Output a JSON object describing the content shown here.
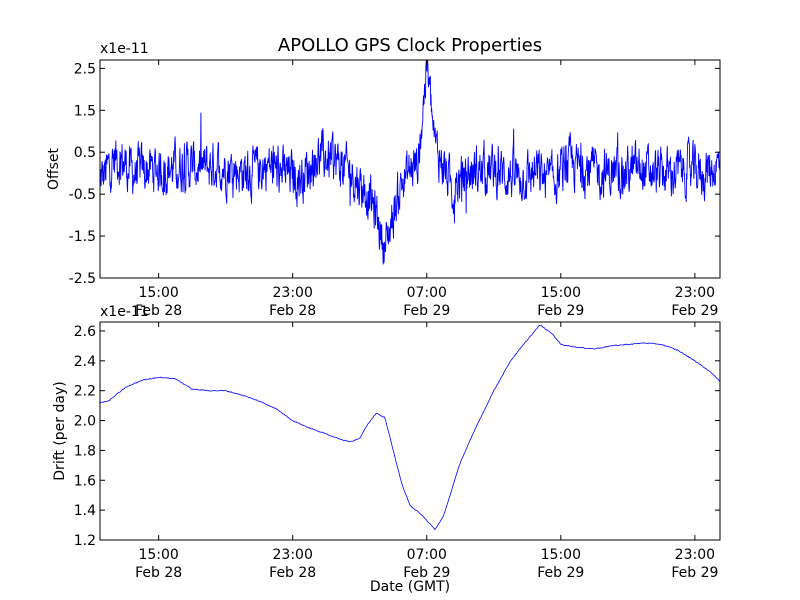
{
  "title": "APOLLO GPS Clock Properties",
  "line_color": "#0000ff",
  "chart_data": [
    {
      "type": "line",
      "ylabel": "Offset",
      "y_multiplier": "x1e-11",
      "ylim": [
        -2.5,
        2.7
      ],
      "yticks": [
        "-2.5",
        "-1.5",
        "-0.5",
        "0.5",
        "1.5",
        "2.5"
      ],
      "xlim": [
        "2012-02-28 11:30",
        "2012-03-01 00:30"
      ],
      "xticks": [
        {
          "time": "2012-02-28 15:00",
          "label1": "15:00",
          "label2": "Feb 28"
        },
        {
          "time": "2012-02-28 23:00",
          "label1": "23:00",
          "label2": "Feb 28"
        },
        {
          "time": "2012-02-29 07:00",
          "label1": "07:00",
          "label2": "Feb 29"
        },
        {
          "time": "2012-02-29 15:00",
          "label1": "15:00",
          "label2": "Feb 29"
        },
        {
          "time": "2012-02-29 23:00",
          "label1": "23:00",
          "label2": "Feb 29"
        }
      ],
      "series": [
        {
          "x": [
            "2012-02-28 11:30",
            "2012-02-28 12:30",
            "2012-02-28 13:30",
            "2012-02-28 14:30",
            "2012-02-28 15:30",
            "2012-02-28 16:30",
            "2012-02-28 17:30",
            "2012-02-28 18:30",
            "2012-02-28 19:30",
            "2012-02-28 20:30",
            "2012-02-28 21:30",
            "2012-02-28 22:30",
            "2012-02-28 23:30",
            "2012-02-29 00:30",
            "2012-02-29 01:30",
            "2012-02-29 02:30",
            "2012-02-29 03:30",
            "2012-02-29 04:00",
            "2012-02-29 04:30",
            "2012-02-29 05:30",
            "2012-02-29 06:30",
            "2012-02-29 07:00",
            "2012-02-29 07:30",
            "2012-02-29 08:00",
            "2012-02-29 08:30",
            "2012-02-29 09:30",
            "2012-02-29 10:30",
            "2012-02-29 11:30",
            "2012-02-29 12:30",
            "2012-02-29 13:30",
            "2012-02-29 14:30",
            "2012-02-29 15:30",
            "2012-02-29 16:30",
            "2012-02-29 17:30",
            "2012-02-29 18:30",
            "2012-02-29 19:30",
            "2012-02-29 20:30",
            "2012-02-29 21:30",
            "2012-02-29 22:30",
            "2012-02-29 23:30",
            "2012-03-01 00:30"
          ],
          "y": [
            -0.2,
            0.4,
            0.0,
            0.1,
            0.1,
            0.2,
            0.1,
            0.2,
            0.1,
            0.0,
            0.2,
            0.0,
            -0.1,
            0.4,
            0.3,
            0.0,
            -0.5,
            -1.0,
            -1.8,
            -0.2,
            0.3,
            2.6,
            0.6,
            0.2,
            -0.4,
            0.0,
            0.1,
            0.0,
            -0.1,
            0.0,
            -0.2,
            0.2,
            0.1,
            0.0,
            0.0,
            0.1,
            0.0,
            0.0,
            0.1,
            0.0,
            0.2
          ]
        }
      ]
    },
    {
      "type": "line",
      "ylabel": "Drift (per day)",
      "y_multiplier": "x1e-11",
      "xlabel": "Date (GMT)",
      "ylim": [
        1.2,
        2.66
      ],
      "yticks": [
        "1.2",
        "1.4",
        "1.6",
        "1.8",
        "2.0",
        "2.2",
        "2.4",
        "2.6"
      ],
      "xlim": [
        "2012-02-28 11:30",
        "2012-03-01 00:30"
      ],
      "xticks": [
        {
          "time": "2012-02-28 15:00",
          "label1": "15:00",
          "label2": "Feb 28"
        },
        {
          "time": "2012-02-28 23:00",
          "label1": "23:00",
          "label2": "Feb 28"
        },
        {
          "time": "2012-02-29 07:00",
          "label1": "07:00",
          "label2": "Feb 29"
        },
        {
          "time": "2012-02-29 15:00",
          "label1": "15:00",
          "label2": "Feb 29"
        },
        {
          "time": "2012-02-29 23:00",
          "label1": "23:00",
          "label2": "Feb 29"
        }
      ],
      "series": [
        {
          "x": [
            "2012-02-28 11:30",
            "2012-02-28 12:00",
            "2012-02-28 13:00",
            "2012-02-28 14:00",
            "2012-02-28 15:00",
            "2012-02-28 16:00",
            "2012-02-28 17:00",
            "2012-02-28 18:00",
            "2012-02-28 19:00",
            "2012-02-28 20:00",
            "2012-02-28 21:00",
            "2012-02-28 22:00",
            "2012-02-28 23:00",
            "2012-02-29 00:00",
            "2012-02-29 01:00",
            "2012-02-29 02:00",
            "2012-02-29 02:30",
            "2012-02-29 03:00",
            "2012-02-29 03:30",
            "2012-02-29 04:00",
            "2012-02-29 04:30",
            "2012-02-29 05:00",
            "2012-02-29 05:30",
            "2012-02-29 06:00",
            "2012-02-29 06:30",
            "2012-02-29 07:00",
            "2012-02-29 07:30",
            "2012-02-29 08:00",
            "2012-02-29 09:00",
            "2012-02-29 10:00",
            "2012-02-29 11:00",
            "2012-02-29 12:00",
            "2012-02-29 13:00",
            "2012-02-29 13:45",
            "2012-02-29 14:30",
            "2012-02-29 15:00",
            "2012-02-29 16:00",
            "2012-02-29 17:00",
            "2012-02-29 18:00",
            "2012-02-29 19:00",
            "2012-02-29 20:00",
            "2012-02-29 21:00",
            "2012-02-29 22:00",
            "2012-02-29 23:00",
            "2012-03-01 00:00",
            "2012-03-01 00:30"
          ],
          "y": [
            2.12,
            2.13,
            2.22,
            2.27,
            2.29,
            2.28,
            2.21,
            2.2,
            2.2,
            2.17,
            2.13,
            2.08,
            2.0,
            1.95,
            1.91,
            1.87,
            1.86,
            1.88,
            1.98,
            2.05,
            2.02,
            1.8,
            1.58,
            1.43,
            1.39,
            1.33,
            1.27,
            1.36,
            1.72,
            1.97,
            2.2,
            2.4,
            2.54,
            2.64,
            2.58,
            2.51,
            2.49,
            2.48,
            2.5,
            2.51,
            2.52,
            2.51,
            2.47,
            2.4,
            2.32,
            2.26
          ]
        }
      ]
    }
  ]
}
